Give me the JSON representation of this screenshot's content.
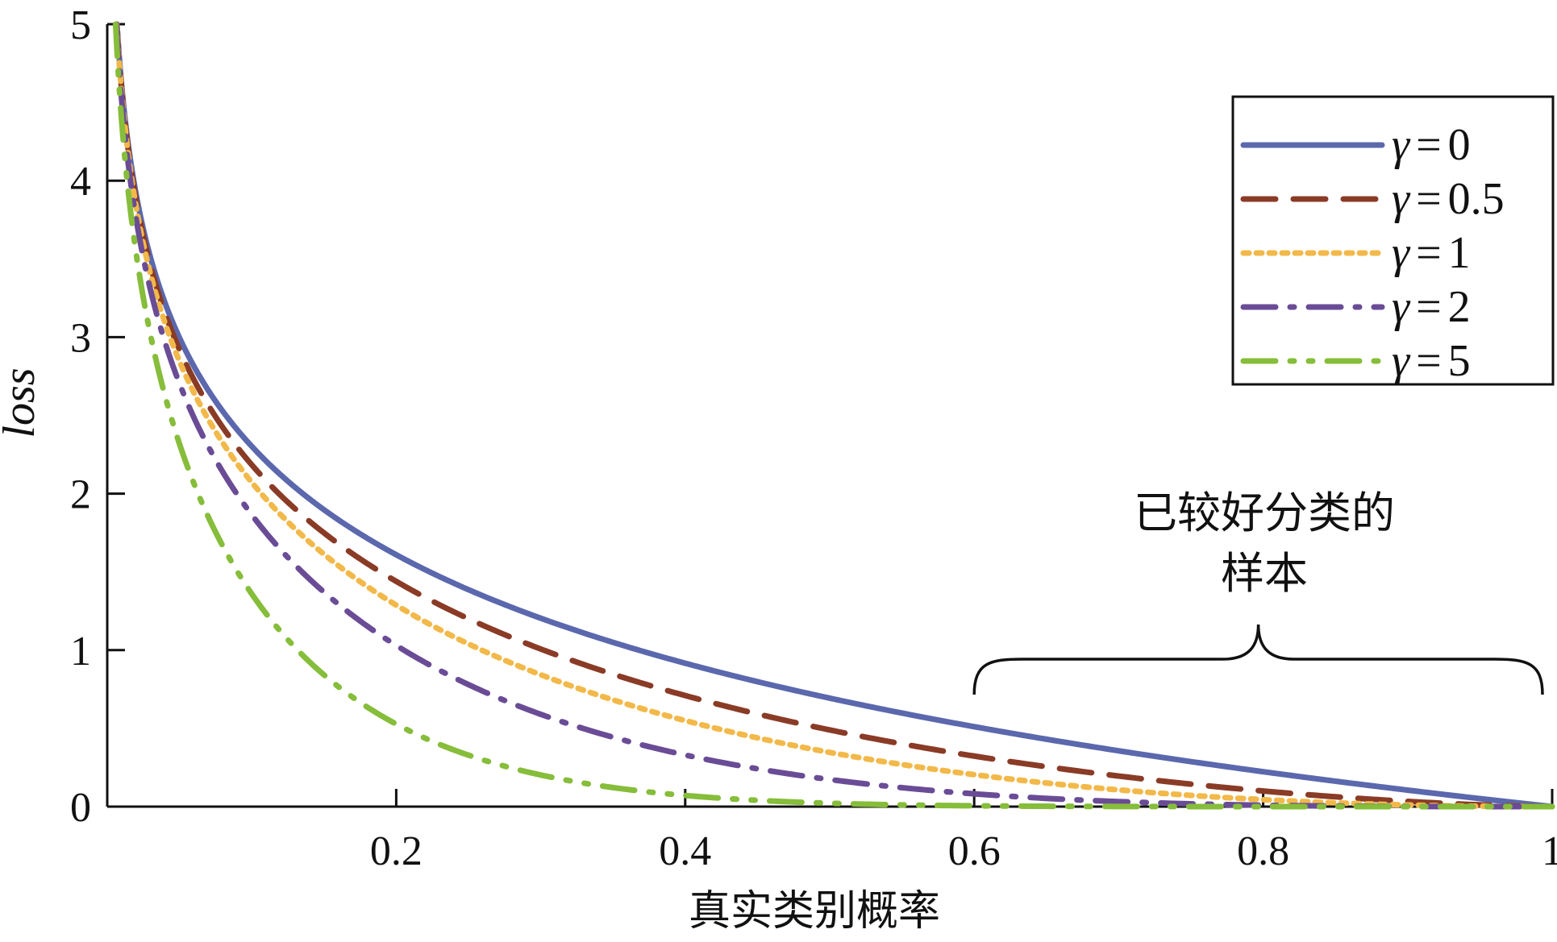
{
  "chart_data": {
    "type": "line",
    "title": "",
    "xlabel": "真实类别概率",
    "ylabel": "loss",
    "xlim": [
      0,
      1
    ],
    "ylim": [
      0,
      5
    ],
    "x_ticks": [
      {
        "value": 0.2,
        "label": "0.2"
      },
      {
        "value": 0.4,
        "label": "0.4"
      },
      {
        "value": 0.6,
        "label": "0.6"
      },
      {
        "value": 0.8,
        "label": "0.8"
      },
      {
        "value": 1.0,
        "label": "1"
      }
    ],
    "y_ticks": [
      {
        "value": 0,
        "label": "0"
      },
      {
        "value": 1,
        "label": "1"
      },
      {
        "value": 2,
        "label": "2"
      },
      {
        "value": 3,
        "label": "3"
      },
      {
        "value": 4,
        "label": "4"
      },
      {
        "value": 5,
        "label": "5"
      }
    ],
    "function": "-(1-p)^gamma * ln(p)",
    "series": [
      {
        "name": "γ = 0",
        "gamma_symbol": "γ",
        "gamma_value": "0",
        "gamma": 0,
        "color": "#5b68ad",
        "dash": "solid"
      },
      {
        "name": "γ = 0.5",
        "gamma_symbol": "γ",
        "gamma_value": "0.5",
        "gamma": 0.5,
        "color": "#8a3b26",
        "dash": "dashed"
      },
      {
        "name": "γ = 1",
        "gamma_symbol": "γ",
        "gamma_value": "1",
        "gamma": 1,
        "color": "#f2b94a",
        "dash": "dotted"
      },
      {
        "name": "γ = 2",
        "gamma_symbol": "γ",
        "gamma_value": "2",
        "gamma": 2,
        "color": "#6a4c96",
        "dash": "dashdot"
      },
      {
        "name": "γ = 5",
        "gamma_symbol": "γ",
        "gamma_value": "5",
        "gamma": 5,
        "color": "#86bd3a",
        "dash": "dashdotdot"
      }
    ],
    "legend": {
      "placement": "top-right"
    },
    "annotation": {
      "line1": "已较好分类的",
      "line2": "样本",
      "x_range": [
        0.6,
        1.0
      ]
    },
    "grid": false
  }
}
